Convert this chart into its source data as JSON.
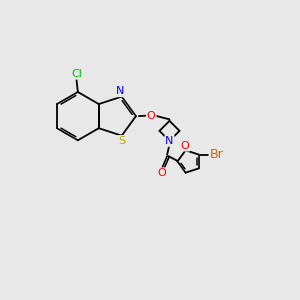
{
  "bg_color": "#e8e8e8",
  "bond_color": "#000000",
  "atom_colors": {
    "N": "#0000ff",
    "O": "#ff0000",
    "S": "#bbaa00",
    "Cl": "#00bb00",
    "Br": "#cc6600",
    "C": "#000000"
  },
  "font_size": 8,
  "figsize": [
    3.0,
    3.0
  ],
  "dpi": 100
}
